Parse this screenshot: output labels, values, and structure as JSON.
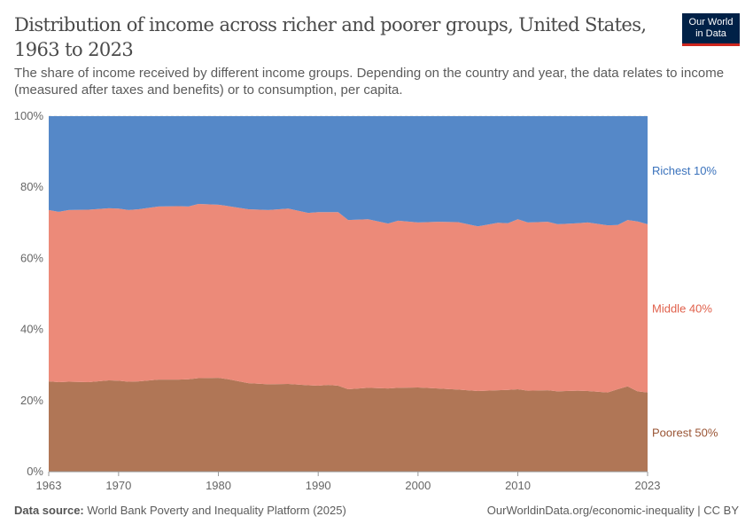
{
  "header": {
    "title": "Distribution of income across richer and poorer groups, United States, 1963 to 2023",
    "subtitle": "The share of income received by different income groups. Depending on the country and year, the data relates to income (measured after taxes and benefits) or to consumption, per capita.",
    "logo_text": "Our World in Data"
  },
  "footer": {
    "source_label": "Data source:",
    "source_text": "World Bank Poverty and Inequality Platform (2025)",
    "credit": "OurWorldinData.org/economic-inequality | CC BY"
  },
  "chart_data": {
    "type": "area",
    "stacked": true,
    "title": "Distribution of income across richer and poorer groups, United States, 1963 to 2023",
    "xlabel": "",
    "ylabel": "",
    "xlim": [
      1963,
      2023
    ],
    "ylim": [
      0,
      100
    ],
    "x_ticks": [
      "1963",
      "1970",
      "1980",
      "1990",
      "2000",
      "2010",
      "2023"
    ],
    "y_ticks": [
      "0%",
      "20%",
      "40%",
      "60%",
      "80%",
      "100%"
    ],
    "grid": "horizontal dashed",
    "legend": "right, inline labels",
    "x": [
      1963,
      1964,
      1965,
      1967,
      1969,
      1970,
      1971,
      1972,
      1974,
      1976,
      1977,
      1978,
      1980,
      1981,
      1983,
      1985,
      1987,
      1989,
      1990,
      1991,
      1992,
      1993,
      1995,
      1997,
      1998,
      2000,
      2002,
      2004,
      2006,
      2008,
      2009,
      2010,
      2011,
      2013,
      2014,
      2016,
      2017,
      2019,
      2020,
      2021,
      2022,
      2023
    ],
    "series": [
      {
        "name": "Poorest 50%",
        "color": "#B07656",
        "label_color": "#9A5535",
        "values": [
          25.4,
          25.2,
          25.3,
          25.2,
          25.7,
          25.6,
          25.3,
          25.4,
          25.9,
          25.9,
          26.0,
          26.3,
          26.4,
          26.0,
          24.9,
          24.6,
          24.7,
          24.3,
          24.2,
          24.4,
          24.2,
          23.2,
          23.6,
          23.4,
          23.6,
          23.7,
          23.4,
          23.1,
          22.7,
          22.9,
          23.0,
          23.2,
          22.8,
          22.9,
          22.6,
          22.8,
          22.7,
          22.3,
          23.2,
          24.0,
          22.6,
          22.3
        ]
      },
      {
        "name": "Middle 40%",
        "color": "#EC8A79",
        "label_color": "#E0604B",
        "values": [
          48.2,
          47.9,
          48.3,
          48.5,
          48.4,
          48.4,
          48.3,
          48.4,
          48.7,
          48.8,
          48.6,
          49.0,
          48.7,
          48.7,
          48.9,
          49.0,
          49.3,
          48.5,
          48.8,
          48.6,
          48.8,
          47.6,
          47.4,
          46.4,
          47.0,
          46.4,
          46.9,
          47.1,
          46.3,
          47.1,
          46.9,
          47.8,
          47.3,
          47.4,
          47.0,
          47.1,
          47.4,
          47.0,
          46.2,
          46.8,
          47.8,
          47.3
        ]
      },
      {
        "name": "Richest 10%",
        "color": "#5588C8",
        "label_color": "#3A72BC",
        "values": [
          26.4,
          26.9,
          26.4,
          26.3,
          25.9,
          26.0,
          26.4,
          26.2,
          25.4,
          25.3,
          25.4,
          24.7,
          24.9,
          25.3,
          26.2,
          26.4,
          26.0,
          27.2,
          27.0,
          27.0,
          27.0,
          29.2,
          29.0,
          30.2,
          29.4,
          29.9,
          29.7,
          29.8,
          31.0,
          30.0,
          30.1,
          29.0,
          29.9,
          29.7,
          30.4,
          30.1,
          29.9,
          30.7,
          30.6,
          29.2,
          29.6,
          30.4
        ]
      }
    ]
  }
}
